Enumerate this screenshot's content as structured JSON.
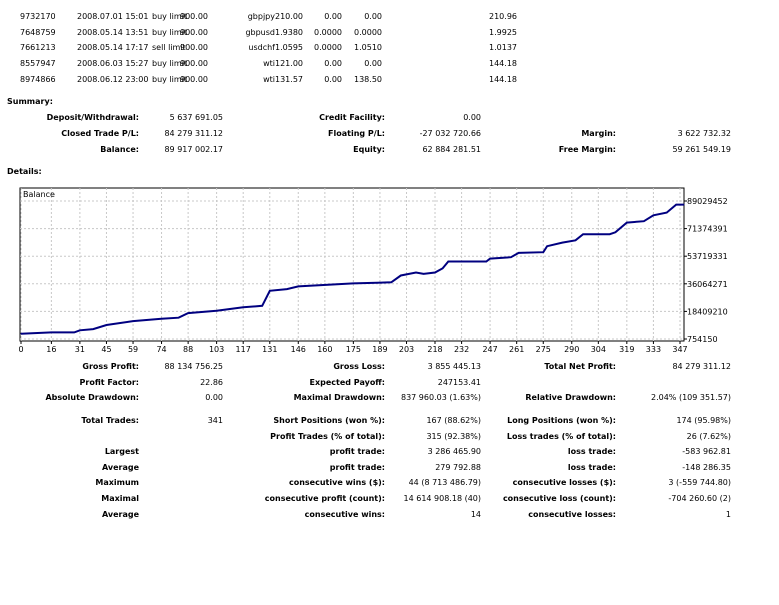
{
  "orders": [
    {
      "ticket": "9732170",
      "time": "2008.07.01 15:01",
      "type": "buy limit",
      "size": "900.00",
      "symbol": "gbpjpy",
      "price": "210.00",
      "sl": "0.00",
      "tp": "0.00",
      "market": "210.96"
    },
    {
      "ticket": "7648759",
      "time": "2008.05.14 13:51",
      "type": "buy limit",
      "size": "900.00",
      "symbol": "gbpusd",
      "price": "1.9380",
      "sl": "0.0000",
      "tp": "0.0000",
      "market": "1.9925"
    },
    {
      "ticket": "7661213",
      "time": "2008.05.14 17:17",
      "type": "sell limit",
      "size": "900.00",
      "symbol": "usdchf",
      "price": "1.0595",
      "sl": "0.0000",
      "tp": "1.0510",
      "market": "1.0137"
    },
    {
      "ticket": "8557947",
      "time": "2008.06.03 15:27",
      "type": "buy limit",
      "size": "900.00",
      "symbol": "wti",
      "price": "121.00",
      "sl": "0.00",
      "tp": "0.00",
      "market": "144.18"
    },
    {
      "ticket": "8974866",
      "time": "2008.06.12 23:00",
      "type": "buy limit",
      "size": "900.00",
      "symbol": "wti",
      "price": "131.57",
      "sl": "0.00",
      "tp": "138.50",
      "market": "144.18"
    }
  ],
  "summary": {
    "title": "Summary:",
    "rows": [
      [
        "Deposit/Withdrawal:",
        "5 637 691.05",
        "Credit Facility:",
        "0.00",
        "",
        ""
      ],
      [
        "Closed Trade P/L:",
        "84 279 311.12",
        "Floating P/L:",
        "-27 032 720.66",
        "Margin:",
        "3 622 732.32"
      ],
      [
        "Balance:",
        "89 917 002.17",
        "Equity:",
        "62 884 281.51",
        "Free Margin:",
        "59 261 549.19"
      ]
    ]
  },
  "details": {
    "title": "Details:",
    "rows": [
      [
        "Gross Profit:",
        "88 134 756.25",
        "Gross Loss:",
        "3 855 445.13",
        "Total Net Profit:",
        "84 279 311.12"
      ],
      [
        "Profit Factor:",
        "22.86",
        "Expected Payoff:",
        "247153.41",
        "",
        ""
      ],
      [
        "Absolute Drawdown:",
        "0.00",
        "Maximal Drawdown:",
        "837 960.03 (1.63%)",
        "Relative Drawdown:",
        "2.04% (109 351.57)"
      ],
      [
        "Total Trades:",
        "341",
        "Short Positions (won %):",
        "167 (88.62%)",
        "Long Positions (won %):",
        "174 (95.98%)"
      ],
      [
        "",
        "",
        "Profit Trades (% of total):",
        "315 (92.38%)",
        "Loss trades (% of total):",
        "26 (7.62%)"
      ],
      [
        "Largest",
        "",
        "profit trade:",
        "3 286 465.90",
        "loss trade:",
        "-583 962.81"
      ],
      [
        "Average",
        "",
        "profit trade:",
        "279 792.88",
        "loss trade:",
        "-148 286.35"
      ],
      [
        "Maximum",
        "",
        "consecutive wins ($):",
        "44 (8 713 486.79)",
        "consecutive losses ($):",
        "3 (-559 744.80)"
      ],
      [
        "Maximal",
        "",
        "consecutive profit (count):",
        "14 614 908.18 (40)",
        "consecutive loss (count):",
        "-704 260.60 (2)"
      ],
      [
        "Average",
        "",
        "consecutive wins:",
        "14",
        "consecutive losses:",
        "1"
      ]
    ]
  },
  "chart_data": {
    "type": "line",
    "title": "Balance",
    "color": "#000080",
    "x": [
      0,
      16,
      28,
      31,
      38,
      45,
      59,
      74,
      83,
      88,
      103,
      117,
      127,
      131,
      140,
      146,
      175,
      195,
      200,
      208,
      212,
      218,
      222,
      225,
      245,
      247,
      258,
      262,
      275,
      277,
      285,
      292,
      296,
      310,
      313,
      319,
      328,
      333,
      340,
      345,
      349
    ],
    "y": [
      4.16,
      5.0,
      5.0,
      6.3,
      7.1,
      9.7,
      12.2,
      13.7,
      14.4,
      17.3,
      18.8,
      21.0,
      22.0,
      31.6,
      32.7,
      34.4,
      36.3,
      37.0,
      41.4,
      43.3,
      42.4,
      43.3,
      45.9,
      50.3,
      50.3,
      52.2,
      53.1,
      55.8,
      56.3,
      60.1,
      62.4,
      63.9,
      67.8,
      67.8,
      69.0,
      75.2,
      76.1,
      79.9,
      81.6,
      86.7,
      86.7
    ],
    "y_unit": "millions",
    "xticks": [
      "0",
      "16",
      "31",
      "45",
      "59",
      "74",
      "88",
      "103",
      "117",
      "131",
      "146",
      "160",
      "175",
      "189",
      "203",
      "218",
      "232",
      "247",
      "261",
      "275",
      "290",
      "304",
      "319",
      "333",
      "347"
    ],
    "yticks": [
      "754150",
      "18409210",
      "36064271",
      "53719331",
      "71374391",
      "89029452"
    ],
    "xlim": [
      0,
      349
    ],
    "ylim": [
      0.75415,
      89.029452
    ],
    "grid": true
  }
}
